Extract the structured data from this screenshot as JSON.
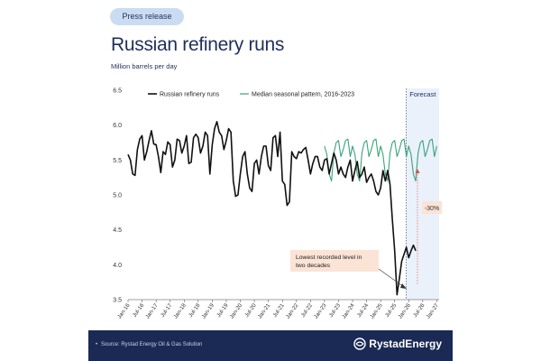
{
  "header": {
    "badge": "Press release",
    "title": "Russian refinery runs",
    "subtitle": "Million barrels per day"
  },
  "footer": {
    "source": "Source: Rystad Energy Oil & Gas Solution",
    "logo_text": "RystadEnergy"
  },
  "colors": {
    "actual": "#111111",
    "seasonal": "#3aa37a",
    "forecast_band": "#eaf1fa",
    "marker": "#d64f3d",
    "callout": "#fbe3d6",
    "navy": "#1b2a55"
  },
  "chart_data": {
    "type": "line",
    "ylabel": "Million barrels per day",
    "ylim": [
      3.5,
      6.5
    ],
    "yticks": [
      "3.5",
      "4.0",
      "4.5",
      "5.0",
      "5.5",
      "6.0",
      "6.5"
    ],
    "xlim": [
      "2016-01",
      "2027-02"
    ],
    "xticks": [
      "Jan-16",
      "Jul-16",
      "Jan-17",
      "Jul-17",
      "Jan-18",
      "Jul-18",
      "Jan-19",
      "Jul-19",
      "Jan-20",
      "Jul-20",
      "Jan-21",
      "Jul-21",
      "Jan-22",
      "Jul-22",
      "Jan-23",
      "Jul-23",
      "Jan-24",
      "Jul-24",
      "Jan-25",
      "Jul-25",
      "Jan-26",
      "Jul-26",
      "Jan-27"
    ],
    "legend_position": "top-left",
    "forecast_label": "Forecast",
    "forecast_start": "2025-12",
    "annotations": {
      "low_callout": "Lowest recorded level in two decades",
      "change_label": "-30%"
    },
    "series": [
      {
        "name": "Russian refinery runs",
        "start": "2016-01",
        "values": [
          5.58,
          5.5,
          5.3,
          5.28,
          5.65,
          5.8,
          5.85,
          5.5,
          5.62,
          5.78,
          5.92,
          5.73,
          5.72,
          5.55,
          5.32,
          5.62,
          5.58,
          5.76,
          5.72,
          5.4,
          5.5,
          5.8,
          5.78,
          5.6,
          5.7,
          5.85,
          5.45,
          5.47,
          5.82,
          5.87,
          5.82,
          5.6,
          5.7,
          5.9,
          5.85,
          5.3,
          5.72,
          5.95,
          6.05,
          5.9,
          5.85,
          5.65,
          5.78,
          5.95,
          5.9,
          5.2,
          4.98,
          5.0,
          5.3,
          5.55,
          5.62,
          5.3,
          5.1,
          5.05,
          5.45,
          5.5,
          5.3,
          5.55,
          5.7,
          5.7,
          5.42,
          5.35,
          5.82,
          5.85,
          5.55,
          5.9,
          5.2,
          5.15,
          4.85,
          4.9,
          5.62,
          5.55,
          5.52,
          5.62,
          5.6,
          5.65,
          5.68,
          5.5,
          5.3,
          5.45,
          5.55,
          5.55,
          5.4,
          5.35,
          5.5,
          5.52,
          5.3,
          5.45,
          5.6,
          5.5,
          5.3,
          5.4,
          5.3,
          5.25,
          5.4,
          5.5,
          5.2,
          5.35,
          5.48,
          5.25,
          5.3,
          5.4,
          5.18,
          5.25,
          5.3,
          5.2,
          5.05,
          5.0,
          5.1,
          5.35,
          5.2,
          5.35,
          5.15,
          4.65,
          4.2,
          3.57,
          3.8,
          4.05,
          4.15,
          4.25,
          4.1,
          4.2,
          4.28,
          4.2
        ]
      },
      {
        "name": "Median seasonal pattern, 2016-2023",
        "start": "2023-01",
        "values": [
          5.7,
          5.58,
          5.3,
          5.2,
          5.6,
          5.75,
          5.78,
          5.55,
          5.65,
          5.78,
          5.8,
          5.55,
          5.7,
          5.58,
          5.3,
          5.2,
          5.6,
          5.75,
          5.78,
          5.55,
          5.65,
          5.78,
          5.8,
          5.55,
          5.7,
          5.58,
          5.3,
          5.2,
          5.6,
          5.75,
          5.78,
          5.55,
          5.65,
          5.78,
          5.8,
          5.55,
          5.7,
          5.58,
          5.3,
          5.2,
          5.6,
          5.75,
          5.78,
          5.55,
          5.65,
          5.78,
          5.8,
          5.55,
          5.7
        ]
      }
    ]
  }
}
